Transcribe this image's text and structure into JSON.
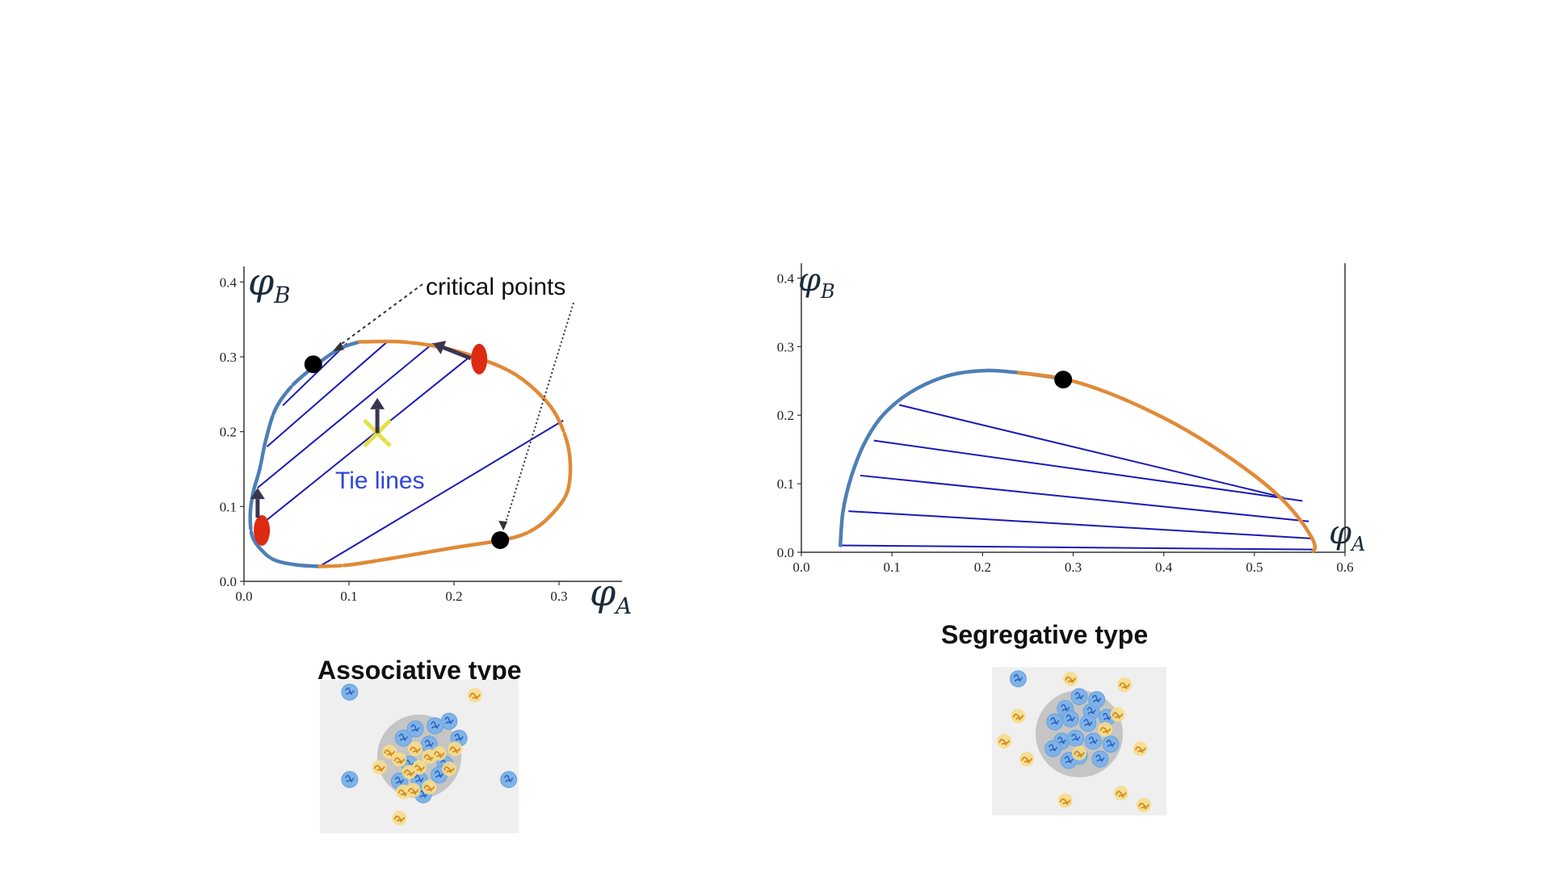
{
  "chart_data": [
    {
      "type": "scatter",
      "xlabel": "φA",
      "ylabel": "φB",
      "xlim": [
        0,
        0.36
      ],
      "ylim": [
        0,
        0.41
      ],
      "x_ticks": [
        0.0,
        0.1,
        0.2,
        0.3
      ],
      "y_ticks": [
        0.0,
        0.1,
        0.2,
        0.3,
        0.4
      ],
      "colors": {
        "dilute": "#4d7fb5",
        "dense": "#e08a38",
        "tie": "#1a1ab8",
        "critical": "#000000",
        "ellipse": "#dd2a12",
        "cross": "#e6e04a",
        "arrow": "#3a3550"
      },
      "series": [
        {
          "x": [
            0.072,
            0.05,
            0.03,
            0.018,
            0.008,
            0.006,
            0.009,
            0.015,
            0.021,
            0.03,
            0.045,
            0.065,
            0.09,
            0.11
          ],
          "y": [
            0.02,
            0.022,
            0.028,
            0.04,
            0.06,
            0.09,
            0.12,
            0.15,
            0.19,
            0.23,
            0.26,
            0.285,
            0.31,
            0.32
          ]
        },
        {
          "x": [
            0.11,
            0.15,
            0.19,
            0.23,
            0.26,
            0.285,
            0.3,
            0.31,
            0.308,
            0.29,
            0.27,
            0.245,
            0.2,
            0.15,
            0.1,
            0.072
          ],
          "y": [
            0.32,
            0.32,
            0.312,
            0.295,
            0.275,
            0.245,
            0.215,
            0.17,
            0.12,
            0.085,
            0.065,
            0.055,
            0.045,
            0.033,
            0.022,
            0.02
          ]
        }
      ],
      "tie_lines": [
        [
          [
            0.072,
            0.02
          ],
          [
            0.304,
            0.215
          ]
        ],
        [
          [
            0.02,
            0.08
          ],
          [
            0.215,
            0.3
          ]
        ],
        [
          [
            0.013,
            0.125
          ],
          [
            0.18,
            0.318
          ]
        ],
        [
          [
            0.022,
            0.18
          ],
          [
            0.138,
            0.322
          ]
        ],
        [
          [
            0.037,
            0.235
          ],
          [
            0.098,
            0.318
          ]
        ]
      ],
      "critical_points": [
        [
          0.066,
          0.29
        ],
        [
          0.244,
          0.055
        ]
      ],
      "phase_points": [
        [
          0.017,
          0.068
        ],
        [
          0.224,
          0.297
        ]
      ],
      "mixture_point": [
        0.127,
        0.198
      ],
      "arrows": [
        [
          [
            0.127,
            0.198
          ],
          [
            0.127,
            0.245
          ]
        ],
        [
          [
            0.013,
            0.085
          ],
          [
            0.013,
            0.125
          ]
        ],
        [
          [
            0.216,
            0.298
          ],
          [
            0.18,
            0.318
          ]
        ]
      ],
      "annotations": {
        "critical": "critical points",
        "tie_lines": "Tie lines"
      }
    },
    {
      "type": "scatter",
      "xlabel": "φA",
      "ylabel": "φB",
      "xlim": [
        0,
        0.6
      ],
      "ylim": [
        0,
        0.41
      ],
      "x_ticks": [
        0.0,
        0.1,
        0.2,
        0.3,
        0.4,
        0.5,
        0.6
      ],
      "y_ticks": [
        0.0,
        0.1,
        0.2,
        0.3,
        0.4
      ],
      "colors": {
        "dilute": "#4d7fb5",
        "dense": "#e08a38",
        "tie": "#1a1ab8",
        "critical": "#000000"
      },
      "series": [
        {
          "x": [
            0.043,
            0.046,
            0.055,
            0.07,
            0.09,
            0.12,
            0.16,
            0.2,
            0.24,
            0.29
          ],
          "y": [
            0.01,
            0.06,
            0.11,
            0.16,
            0.2,
            0.233,
            0.257,
            0.265,
            0.262,
            0.253
          ]
        },
        {
          "x": [
            0.24,
            0.29,
            0.34,
            0.4,
            0.45,
            0.5,
            0.53,
            0.55,
            0.563,
            0.567,
            0.565
          ],
          "y": [
            0.262,
            0.253,
            0.232,
            0.196,
            0.158,
            0.112,
            0.078,
            0.048,
            0.022,
            0.008,
            0.002
          ]
        }
      ],
      "tie_lines": [
        [
          [
            0.043,
            0.01
          ],
          [
            0.566,
            0.004
          ]
        ],
        [
          [
            0.052,
            0.06
          ],
          [
            0.565,
            0.02
          ]
        ],
        [
          [
            0.065,
            0.112
          ],
          [
            0.56,
            0.045
          ]
        ],
        [
          [
            0.08,
            0.163
          ],
          [
            0.553,
            0.075
          ]
        ],
        [
          [
            0.108,
            0.215
          ],
          [
            0.532,
            0.08
          ]
        ]
      ],
      "critical_points": [
        [
          0.289,
          0.252
        ]
      ]
    }
  ],
  "captions": {
    "left": "Associative type",
    "right": "Segregative type"
  },
  "thumbnails": {
    "left": {
      "blobs": [
        [
          0.6,
          0.45,
          0.8,
          0.4
        ],
        [
          0.52,
          0.4,
          0.75,
          0.47
        ],
        [
          0.4,
          0.45,
          0.65,
          0.45
        ],
        [
          0.48,
          0.55,
          0.57,
          0.62
        ],
        [
          0.35,
          0.6,
          0.38,
          0.72
        ],
        [
          0.58,
          0.68,
          0.54,
          0.35
        ],
        [
          0.42,
          0.52,
          0.62,
          0.66
        ]
      ],
      "blue": [
        [
          0.15,
          0.08
        ],
        [
          0.15,
          0.65
        ],
        [
          0.95,
          0.65
        ],
        [
          0.65,
          0.27
        ],
        [
          0.58,
          0.3
        ],
        [
          0.55,
          0.42
        ],
        [
          0.45,
          0.55
        ],
        [
          0.63,
          0.55
        ],
        [
          0.4,
          0.66
        ],
        [
          0.5,
          0.65
        ],
        [
          0.6,
          0.62
        ],
        [
          0.52,
          0.75
        ],
        [
          0.42,
          0.38
        ],
        [
          0.48,
          0.32
        ],
        [
          0.7,
          0.38
        ]
      ],
      "yellow": [
        [
          0.78,
          0.1
        ],
        [
          0.4,
          0.9
        ],
        [
          0.48,
          0.45
        ],
        [
          0.4,
          0.52
        ],
        [
          0.55,
          0.5
        ],
        [
          0.5,
          0.57
        ],
        [
          0.3,
          0.57
        ],
        [
          0.45,
          0.6
        ],
        [
          0.68,
          0.45
        ],
        [
          0.6,
          0.48
        ],
        [
          0.55,
          0.7
        ],
        [
          0.42,
          0.73
        ],
        [
          0.47,
          0.72
        ],
        [
          0.65,
          0.58
        ],
        [
          0.35,
          0.47
        ]
      ]
    },
    "right": {
      "blob": [
        0.5,
        0.45,
        0.25
      ],
      "blue": [
        [
          0.15,
          0.08
        ],
        [
          0.5,
          0.2
        ],
        [
          0.57,
          0.3
        ],
        [
          0.42,
          0.28
        ],
        [
          0.36,
          0.37
        ],
        [
          0.45,
          0.35
        ],
        [
          0.6,
          0.22
        ],
        [
          0.66,
          0.34
        ],
        [
          0.55,
          0.38
        ],
        [
          0.4,
          0.5
        ],
        [
          0.48,
          0.48
        ],
        [
          0.58,
          0.5
        ],
        [
          0.68,
          0.52
        ],
        [
          0.5,
          0.6
        ],
        [
          0.62,
          0.62
        ],
        [
          0.44,
          0.63
        ],
        [
          0.35,
          0.55
        ]
      ],
      "yellow": [
        [
          0.45,
          0.08
        ],
        [
          0.76,
          0.12
        ],
        [
          0.72,
          0.32
        ],
        [
          0.15,
          0.33
        ],
        [
          0.07,
          0.5
        ],
        [
          0.2,
          0.62
        ],
        [
          0.85,
          0.55
        ],
        [
          0.65,
          0.42
        ],
        [
          0.74,
          0.85
        ],
        [
          0.87,
          0.93
        ],
        [
          0.42,
          0.9
        ],
        [
          0.5,
          0.58
        ]
      ]
    }
  }
}
